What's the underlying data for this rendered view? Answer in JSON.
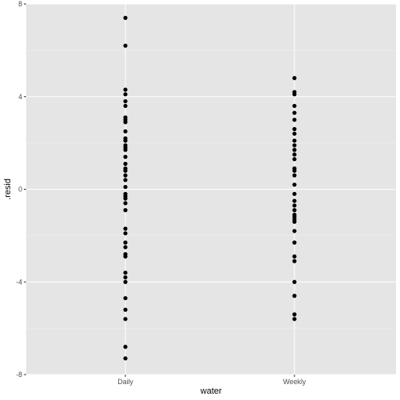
{
  "chart_data": {
    "type": "scatter",
    "title": "",
    "xlabel": "water",
    "ylabel": ".resid",
    "categories": [
      "Daily",
      "Weekly"
    ],
    "ylim": [
      -8,
      8
    ],
    "yticks": [
      -8,
      -4,
      0,
      4,
      8
    ],
    "y_tick_labels": [
      "-8",
      "-4",
      "0",
      "4",
      "8"
    ],
    "grid": true,
    "legend": "none",
    "colors": {
      "panel": "#e5e5e5",
      "grid_major": "#ffffff",
      "grid_minor": "#f2f2f2",
      "point": "#000000"
    },
    "series": [
      {
        "category": "Daily",
        "values": [
          7.4,
          6.2,
          4.3,
          4.1,
          3.8,
          3.6,
          3.1,
          3.0,
          2.9,
          2.5,
          2.2,
          2.1,
          1.9,
          1.8,
          1.7,
          1.4,
          1.1,
          0.9,
          0.8,
          0.6,
          0.4,
          0.1,
          -0.2,
          -0.3,
          -0.4,
          -0.6,
          -0.9,
          -1.7,
          -1.9,
          -2.3,
          -2.5,
          -2.8,
          -2.9,
          -3.6,
          -3.8,
          -4.0,
          -4.7,
          -5.2,
          -5.6,
          -6.8,
          -7.3
        ]
      },
      {
        "category": "Weekly",
        "values": [
          4.8,
          4.2,
          4.1,
          3.6,
          3.3,
          3.0,
          2.6,
          2.4,
          2.1,
          1.9,
          1.7,
          1.5,
          1.3,
          0.9,
          0.8,
          0.6,
          0.2,
          -0.2,
          -0.5,
          -0.7,
          -0.9,
          -1.1,
          -1.2,
          -1.3,
          -1.4,
          -1.8,
          -2.3,
          -2.9,
          -3.1,
          -4.0,
          -4.6,
          -5.4,
          -5.6
        ]
      }
    ]
  }
}
